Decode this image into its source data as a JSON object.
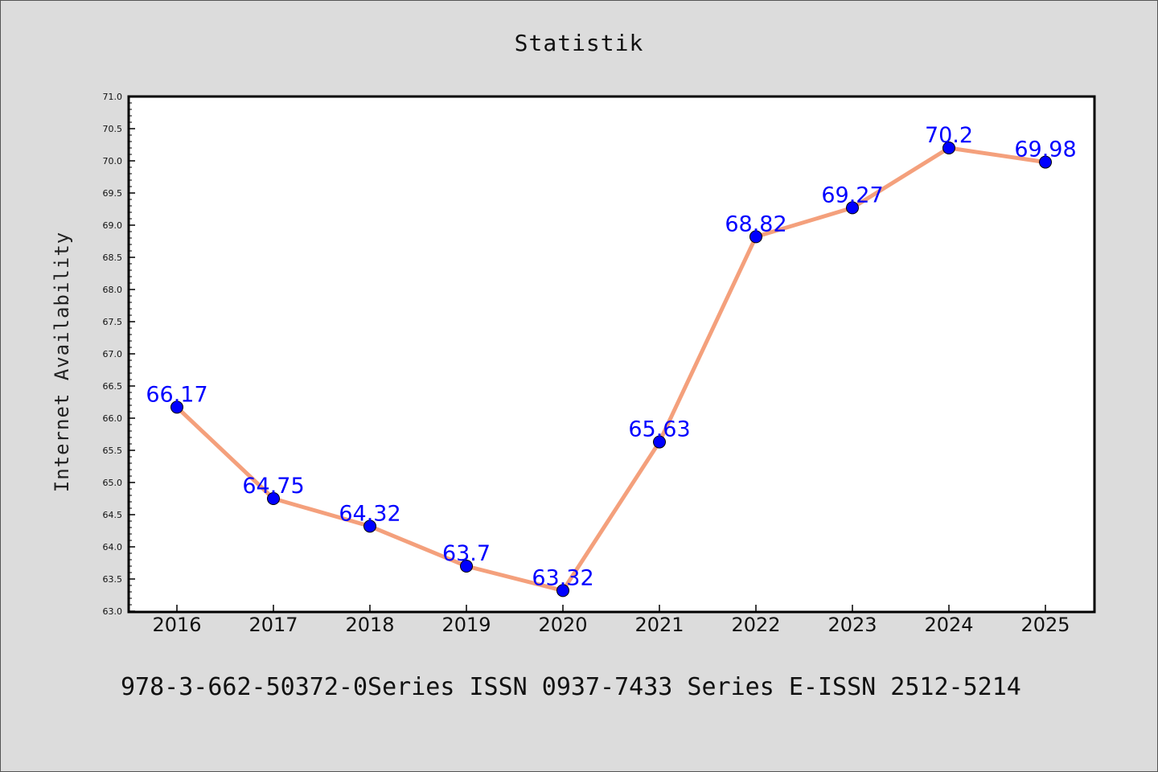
{
  "chart_data": {
    "type": "line",
    "title": "Statistik",
    "xlabel": "",
    "ylabel": "Internet Availability",
    "categories": [
      "2016",
      "2017",
      "2018",
      "2019",
      "2020",
      "2021",
      "2022",
      "2023",
      "2024",
      "2025"
    ],
    "series": [
      {
        "values": [
          66.17,
          64.75,
          64.32,
          63.7,
          63.32,
          65.63,
          68.82,
          69.27,
          70.2,
          69.98
        ],
        "labels": [
          "66.17",
          "64.75",
          "64.32",
          "63.7",
          "63.32",
          "65.63",
          "68.82",
          "69.27",
          "70.2",
          "69.98"
        ]
      }
    ],
    "ylim": [
      63.0,
      71.0
    ],
    "yticks": [
      "63.0",
      "63.5",
      "64.0",
      "64.5",
      "65.0",
      "65.5",
      "66.0",
      "66.5",
      "67.0",
      "67.5",
      "68.0",
      "68.5",
      "69.0",
      "69.5",
      "70.0",
      "70.5",
      "71.0"
    ],
    "grid": false,
    "colors": {
      "line": "#f4a07c",
      "marker": "#0000ff",
      "label": "#0000ff",
      "background": "#dcdcdc",
      "plot_area": "#ffffff"
    }
  },
  "footer": {
    "text": "978-3-662-50372-0Series ISSN 0937-7433 Series E-ISSN 2512-5214"
  }
}
